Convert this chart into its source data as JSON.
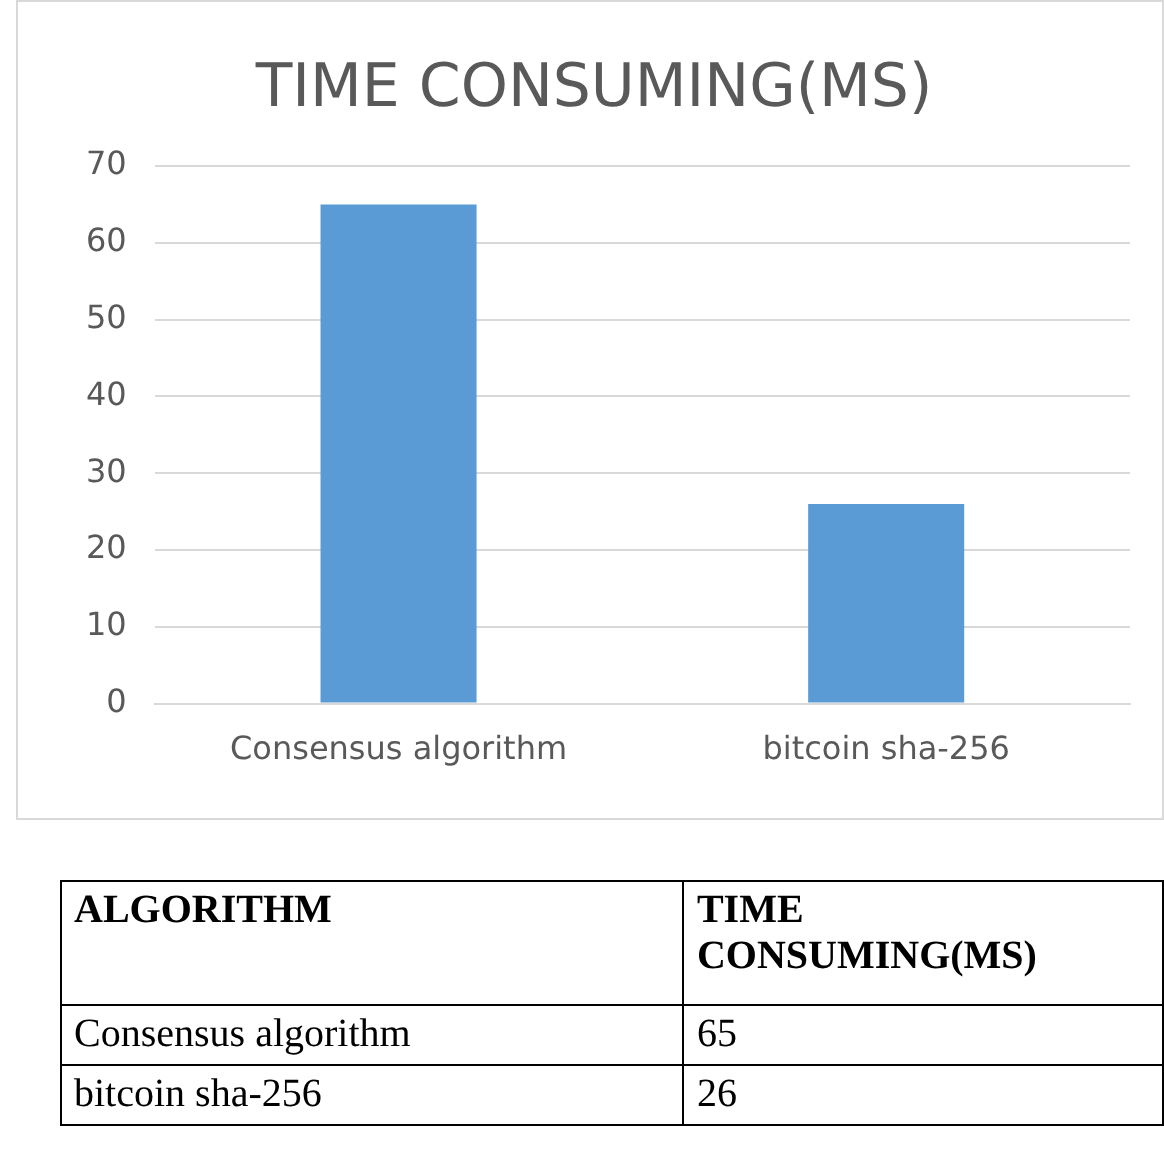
{
  "chart_data": [
    {
      "type": "bar",
      "title": "TIME CONSUMING(MS)",
      "categories": [
        "Consensus algorithm",
        "bitcoin sha-256"
      ],
      "values": [
        65,
        26
      ],
      "color": "#5b9bd5",
      "ylim": [
        0,
        70
      ],
      "yticks": [
        0,
        10,
        20,
        30,
        40,
        50,
        60,
        70
      ],
      "grid": "y"
    },
    {
      "type": "other",
      "xlabel": "ALGORITHM",
      "ylabel": "TIME CONSUMING(MS)",
      "categories": [
        "Consensus algorithm",
        "bitcoin sha-256"
      ],
      "values": [
        65,
        26
      ],
      "value_labels": [
        "65",
        "26"
      ]
    }
  ]
}
